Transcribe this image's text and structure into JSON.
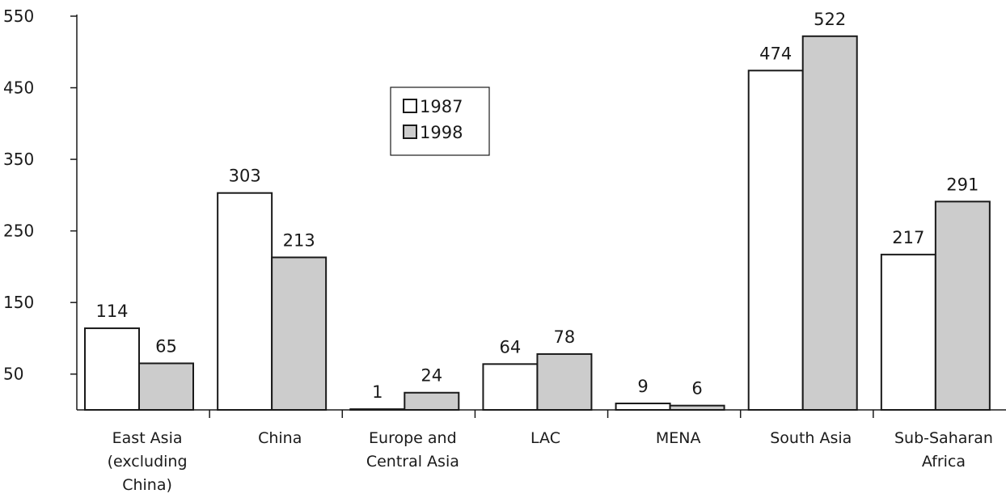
{
  "chart_data": {
    "type": "bar",
    "categories": [
      [
        "East Asia",
        "(excluding",
        "China)"
      ],
      [
        "China"
      ],
      [
        "Europe and",
        "Central Asia"
      ],
      [
        "LAC"
      ],
      [
        "MENA"
      ],
      [
        "South Asia"
      ],
      [
        "Sub-Saharan",
        "Africa"
      ]
    ],
    "series": [
      {
        "name": "1987",
        "values": [
          114,
          303,
          1,
          64,
          9,
          474,
          217
        ],
        "color": "#ffffff"
      },
      {
        "name": "1998",
        "values": [
          65,
          213,
          24,
          78,
          6,
          522,
          291
        ],
        "color": "#cccccc"
      }
    ],
    "yticks": [
      50,
      150,
      250,
      350,
      450,
      550
    ],
    "ylim": [
      0,
      550
    ],
    "legend": "upper-center",
    "grid": false
  }
}
